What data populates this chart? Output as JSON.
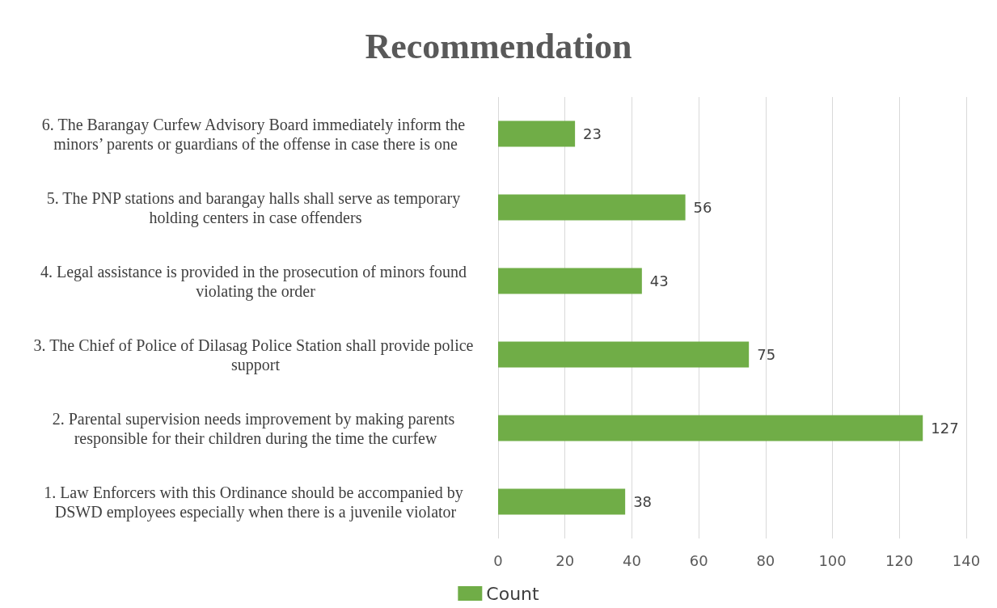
{
  "chart_data": {
    "type": "bar",
    "orientation": "horizontal",
    "title": "Recommendation",
    "categories": [
      "6. The Barangay Curfew Advisory Board immediately inform the minors’ parents or guardians of the offense in case there is one",
      "5. The PNP stations and barangay halls shall serve as temporary holding centers in case offenders",
      "4. Legal assistance is provided in the prosecution of minors found violating the order",
      "3. The Chief of Police of Dilasag Police Station shall provide police support",
      "2. Parental supervision needs improvement by making parents responsible for their children during the time the curfew",
      "1. Law Enforcers with this Ordinance should be accompanied by DSWD employees especially when there is a juvenile violator"
    ],
    "series": [
      {
        "name": "Count",
        "color": "#70ad47",
        "values": [
          23,
          56,
          43,
          75,
          127,
          38
        ]
      }
    ],
    "xlim": [
      0,
      140
    ],
    "xticks": [
      0,
      20,
      40,
      60,
      80,
      100,
      120,
      140
    ],
    "grid": "x",
    "legend": "bottom",
    "data_labels": true
  }
}
